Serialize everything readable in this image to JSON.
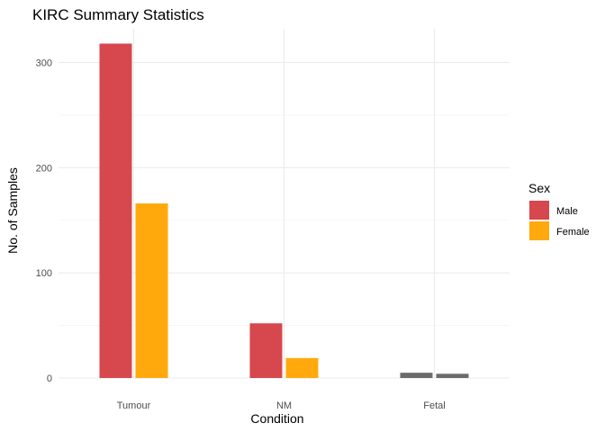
{
  "chart_data": {
    "type": "bar",
    "title": "KIRC Summary Statistics",
    "xlabel": "Condition",
    "ylabel": "No. of Samples",
    "categories": [
      "Tumour",
      "NM",
      "Fetal"
    ],
    "ylim": [
      0,
      330
    ],
    "yticks": [
      0,
      100,
      200,
      300
    ],
    "grid": true,
    "legend": {
      "title": "Sex",
      "placement": "right",
      "entries": [
        {
          "name": "Male",
          "color": "#D7474E"
        },
        {
          "name": "Female",
          "color": "#FFA90C"
        }
      ]
    },
    "series": [
      {
        "name": "Male",
        "color": "#D7474E",
        "values": [
          318,
          52,
          5
        ],
        "colors": [
          "#D7474E",
          "#D7474E",
          "#6B6B6B"
        ]
      },
      {
        "name": "Female",
        "color": "#FFA90C",
        "values": [
          166,
          19,
          4
        ],
        "colors": [
          "#FFA90C",
          "#FFA90C",
          "#6B6B6B"
        ]
      }
    ]
  }
}
